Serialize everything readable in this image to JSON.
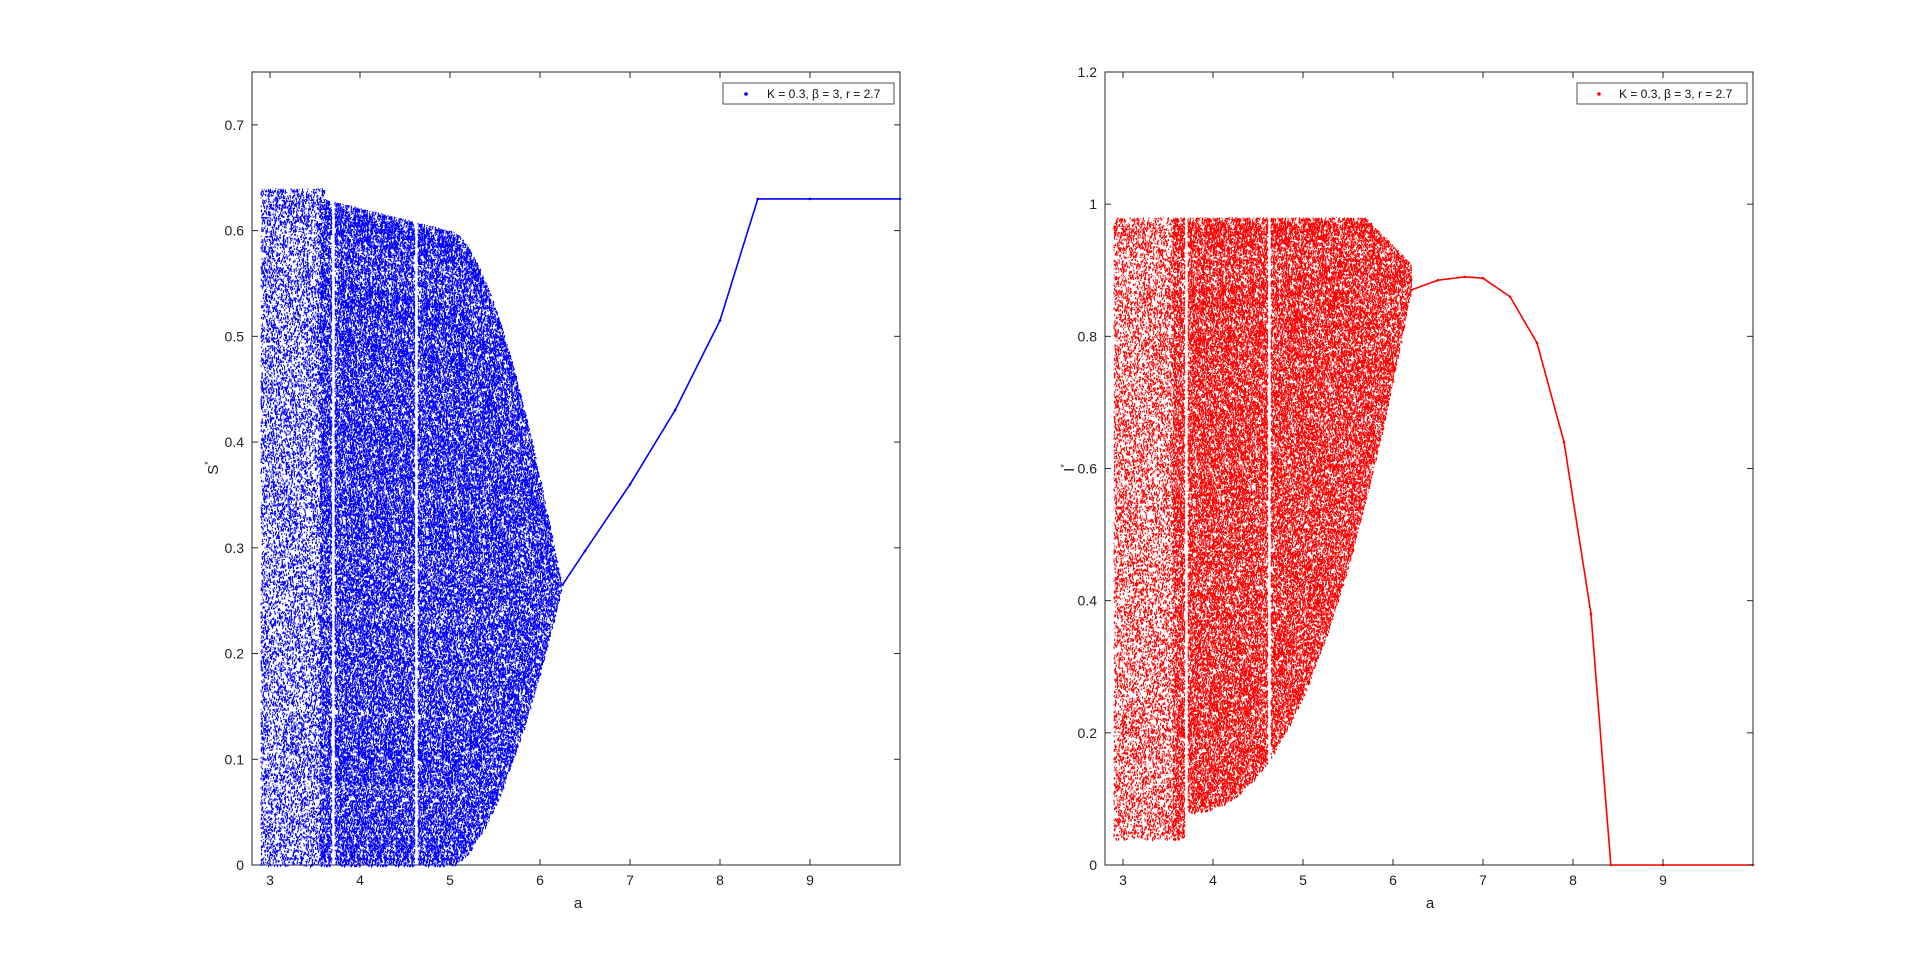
{
  "chart_data": [
    {
      "type": "scatter",
      "title": "",
      "xlabel": "a",
      "ylabel": "S",
      "ylabel_sup": "*",
      "xlim": [
        2.8,
        10
      ],
      "ylim": [
        0,
        0.75
      ],
      "x_ticks": [
        3,
        4,
        5,
        6,
        7,
        8,
        9
      ],
      "y_ticks": [
        0,
        0.1,
        0.2,
        0.3,
        0.4,
        0.5,
        0.6,
        0.7
      ],
      "color": "#0000ff",
      "grid": false,
      "legend": {
        "position": "top-right",
        "label": "K = 0.3, β = 3, r = 2.7"
      },
      "chaos_region": {
        "x_start": 2.9,
        "x_end": 6.25,
        "y_floor": 0.0,
        "y_ceiling": 0.63
      },
      "gaps": [
        3.7,
        4.62
      ],
      "series": [
        {
          "x": [
            6.25,
            6.5,
            7.0,
            7.5,
            8.0,
            8.42,
            9.0,
            10.0
          ],
          "values": [
            0.265,
            0.297,
            0.36,
            0.43,
            0.515,
            0.63,
            0.63,
            0.63
          ]
        }
      ]
    },
    {
      "type": "scatter",
      "title": "",
      "xlabel": "a",
      "ylabel": "I",
      "ylabel_sup": "*",
      "xlim": [
        2.8,
        10
      ],
      "ylim": [
        0,
        1.2
      ],
      "x_ticks": [
        3,
        4,
        5,
        6,
        7,
        8,
        9
      ],
      "y_ticks": [
        0,
        0.2,
        0.4,
        0.6,
        0.8,
        1,
        1.2
      ],
      "color": "#ff0000",
      "grid": false,
      "legend": {
        "position": "top-right",
        "label": "K = 0.3, β = 3, r = 2.7"
      },
      "chaos_region": {
        "x_start": 2.9,
        "x_end": 6.2,
        "y_floor": 0.04,
        "y_ceiling": 0.98
      },
      "gaps": [
        3.7,
        4.62
      ],
      "series": [
        {
          "x": [
            6.2,
            6.5,
            6.8,
            7.0,
            7.3,
            7.6,
            7.9,
            8.2,
            8.42,
            9.0,
            10.0
          ],
          "values": [
            0.87,
            0.885,
            0.89,
            0.888,
            0.86,
            0.79,
            0.64,
            0.38,
            0.0,
            0.0,
            0.0
          ]
        }
      ]
    }
  ]
}
